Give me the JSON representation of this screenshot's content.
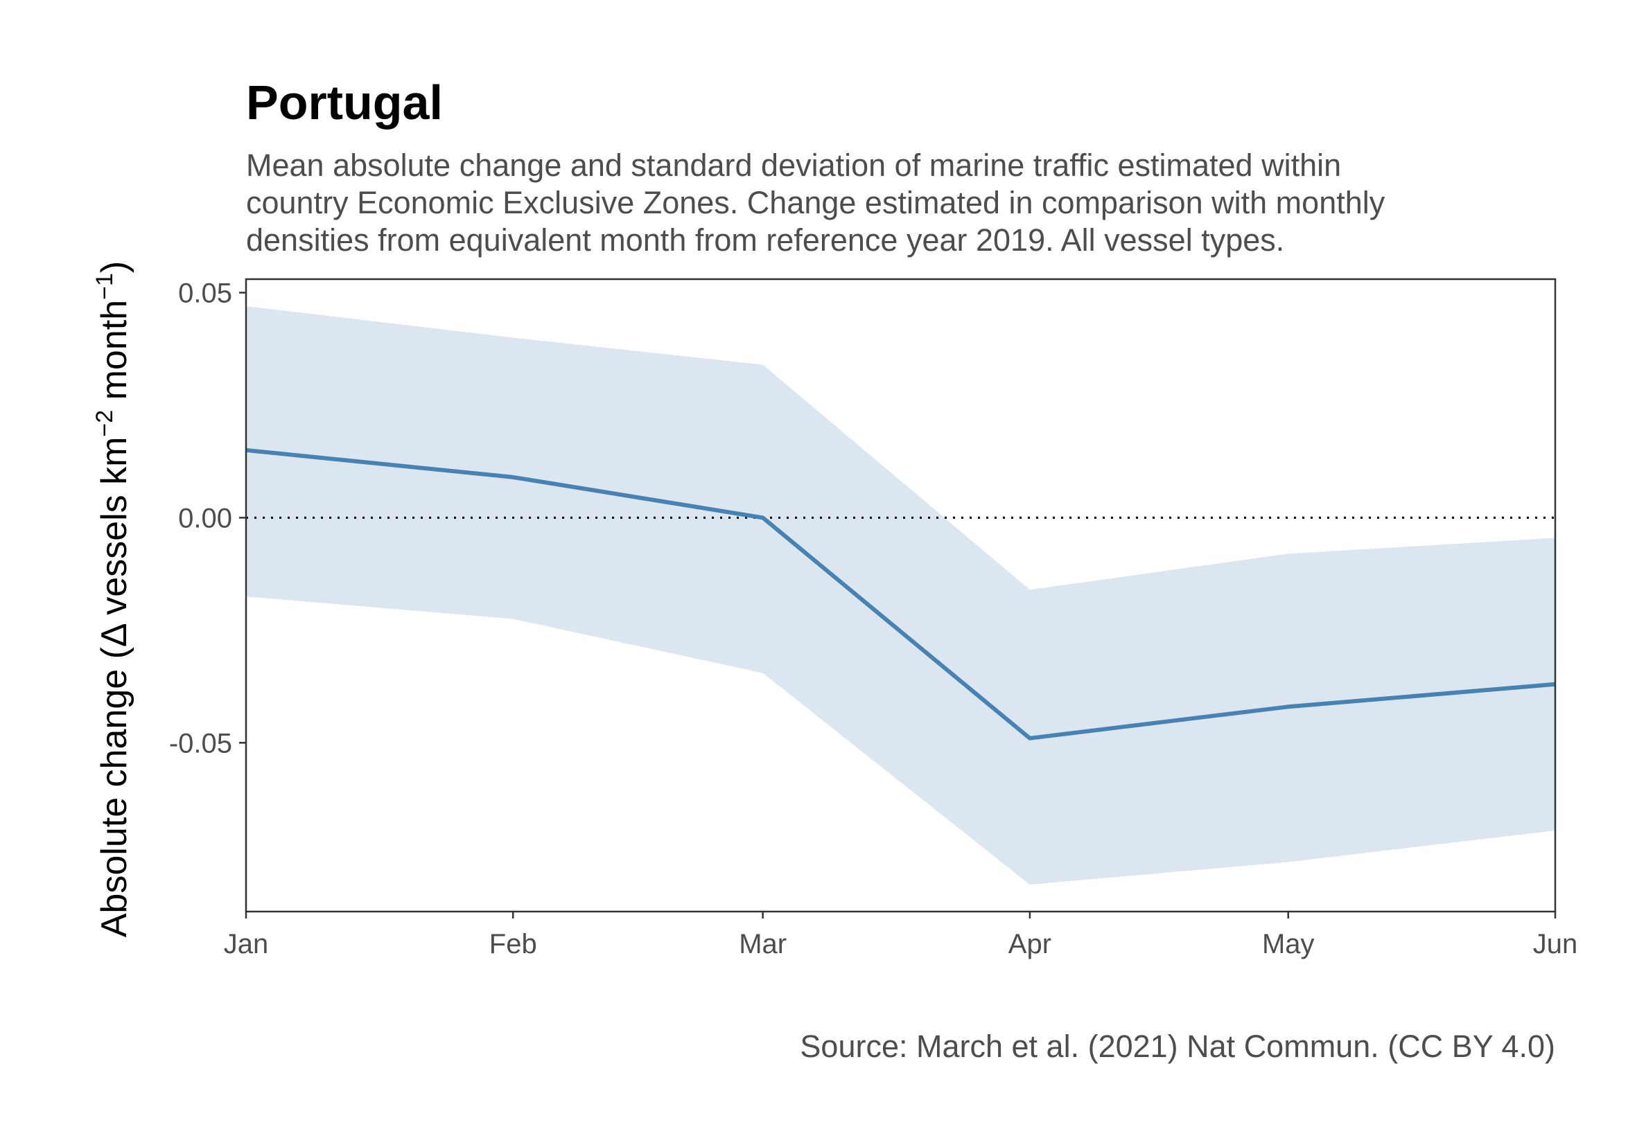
{
  "chart_data": {
    "type": "line",
    "title": "Portugal",
    "subtitle_lines": [
      "Mean absolute change and standard deviation of marine traffic estimated within",
      "country Economic Exclusive Zones. Change estimated in comparison with monthly",
      "densities from equivalent month from reference year 2019. All vessel types."
    ],
    "ylabel_main": "Absolute change (",
    "ylabel_delta": "Δ",
    "ylabel_units": " vessels km",
    "ylabel_sup1": "−2",
    "ylabel_month": " month",
    "ylabel_sup2": "−1",
    "ylabel_close": ")",
    "caption": "Source: March et al. (2021) Nat Commun. (CC BY 4.0)",
    "categories": [
      "Jan",
      "Feb",
      "Mar",
      "Apr",
      "May",
      "Jun"
    ],
    "x_dates": [
      "2020-01-01",
      "2020-02-01",
      "2020-03-01",
      "2020-04-01",
      "2020-05-01",
      "2020-06-01"
    ],
    "series": [
      {
        "values": [
          0.015,
          0.009,
          0.0,
          -0.049,
          -0.042,
          -0.037
        ],
        "upper": [
          0.047,
          0.04,
          0.034,
          -0.016,
          -0.008,
          -0.0045
        ],
        "lower": [
          -0.0175,
          -0.0225,
          -0.0345,
          -0.0815,
          -0.0765,
          -0.0695
        ]
      }
    ],
    "ylim": [
      -0.0875,
      0.053
    ],
    "yticks": [
      0.05,
      0.0,
      -0.05
    ],
    "ytick_labels": [
      "0.05",
      "0.00",
      "-0.05"
    ],
    "reference_line": 0.0,
    "grid": false,
    "colors": {
      "line": "#4682b4",
      "ribbon": "#dce6f0",
      "reference": "#000000",
      "axis": "#333333"
    }
  }
}
